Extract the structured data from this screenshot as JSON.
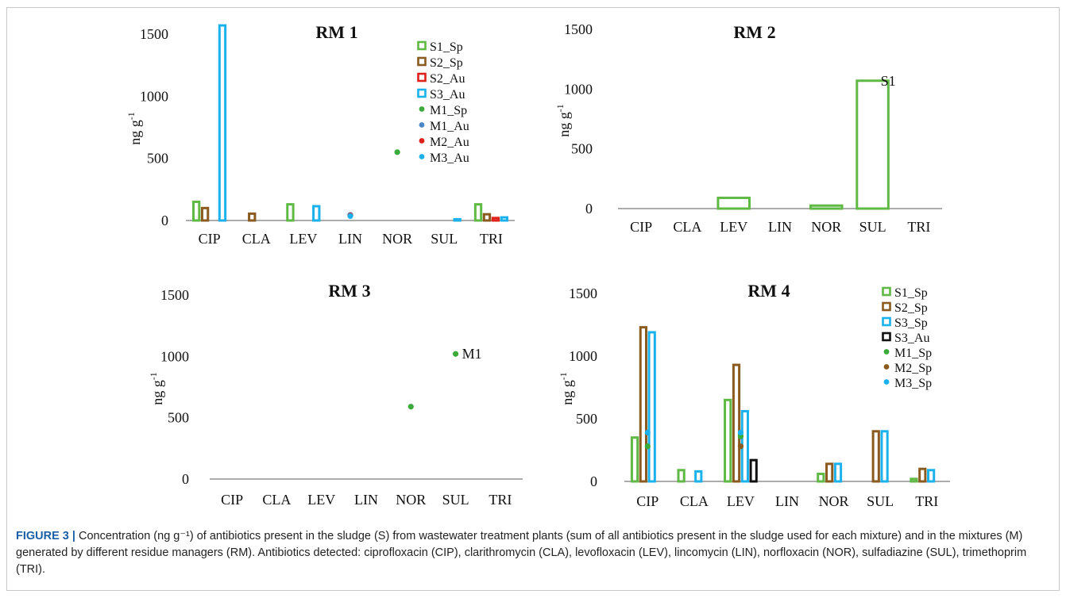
{
  "figure": {
    "caption_label": "FIGURE 3 |",
    "caption_text": " Concentration (ng g⁻¹) of antibiotics present in the sludge (S) from wastewater treatment plants (sum of all antibiotics present in the sludge used for each mixture) and in the mixtures (M) generated by different residue managers (RM). Antibiotics detected: ciprofloxacin (CIP), clarithromycin (CLA), levofloxacin (LEV), lincomycin (LIN), norfloxacin (NOR), sulfadiazine (SUL), trimethoprim (TRI)."
  },
  "colors": {
    "S1": "#5fb944",
    "S2": "#8a5a1f",
    "S2_Au": "#e0201b",
    "S3": "#1ab1ec",
    "S3_Au": "#111111",
    "M1_Sp": "#3aab3a",
    "M1_Au": "#4a86c8",
    "M2_Au": "#e0201b",
    "M2_Sp": "#8a5a1f",
    "M3": "#1ab1ec"
  },
  "chart_data": [
    {
      "type": "bar",
      "title": "RM 1",
      "ylabel": "ng g-1",
      "ylim": [
        0,
        1500
      ],
      "yticks": [
        "0",
        "500",
        "1000",
        "1500"
      ],
      "categories": [
        "CIP",
        "CLA",
        "LEV",
        "LIN",
        "NOR",
        "SUL",
        "TRI"
      ],
      "legend_placement": "top-right",
      "series": [
        {
          "name": "S1_Sp",
          "kind": "bar",
          "color": "#5fb944",
          "values": [
            150,
            0,
            130,
            0,
            0,
            0,
            130
          ]
        },
        {
          "name": "S2_Sp",
          "kind": "bar",
          "color": "#8a5a1f",
          "values": [
            100,
            55,
            0,
            0,
            0,
            0,
            50
          ]
        },
        {
          "name": "S2_Au",
          "kind": "bar",
          "color": "#e0201b",
          "values": [
            0,
            0,
            0,
            0,
            0,
            0,
            20
          ]
        },
        {
          "name": "S3_Au",
          "kind": "bar",
          "color": "#1ab1ec",
          "values": [
            1570,
            0,
            115,
            0,
            0,
            10,
            25
          ]
        },
        {
          "name": "M1_Sp",
          "kind": "point",
          "color": "#3aab3a",
          "values": [
            null,
            null,
            null,
            null,
            550,
            null,
            null
          ]
        },
        {
          "name": "M1_Au",
          "kind": "point",
          "color": "#4a86c8",
          "values": [
            null,
            null,
            null,
            45,
            null,
            null,
            null
          ]
        },
        {
          "name": "M2_Au",
          "kind": "point",
          "color": "#e0201b",
          "values": [
            null,
            null,
            null,
            40,
            null,
            null,
            null
          ]
        },
        {
          "name": "M3_Au",
          "kind": "point",
          "color": "#1ab1ec",
          "values": [
            null,
            null,
            null,
            35,
            null,
            null,
            null
          ]
        }
      ],
      "annotations": []
    },
    {
      "type": "bar",
      "title": "RM 2",
      "ylabel": "ng g-1",
      "ylim": [
        0,
        1500
      ],
      "yticks": [
        "0",
        "500",
        "1000",
        "1500"
      ],
      "categories": [
        "CIP",
        "CLA",
        "LEV",
        "LIN",
        "NOR",
        "SUL",
        "TRI"
      ],
      "legend_placement": "",
      "series": [
        {
          "name": "S1",
          "kind": "bar",
          "color": "#5fb944",
          "values": [
            0,
            0,
            90,
            0,
            25,
            1070,
            0
          ]
        }
      ],
      "annotations": [
        {
          "text": "S1",
          "series": 0,
          "category": 5
        }
      ]
    },
    {
      "type": "bar",
      "title": "RM 3",
      "ylabel": "ng g-1",
      "ylim": [
        0,
        1500
      ],
      "yticks": [
        "0",
        "500",
        "1000",
        "1500"
      ],
      "categories": [
        "CIP",
        "CLA",
        "LEV",
        "LIN",
        "NOR",
        "SUL",
        "TRI"
      ],
      "legend_placement": "",
      "series": [
        {
          "name": "M1",
          "kind": "point",
          "color": "#3aab3a",
          "values": [
            null,
            null,
            null,
            null,
            590,
            1020,
            null
          ]
        }
      ],
      "annotations": [
        {
          "text": "M1",
          "series": 0,
          "category": 5
        }
      ]
    },
    {
      "type": "bar",
      "title": "RM 4",
      "ylabel": "ng g-1",
      "ylim": [
        0,
        1500
      ],
      "yticks": [
        "0",
        "500",
        "1000",
        "1500"
      ],
      "categories": [
        "CIP",
        "CLA",
        "LEV",
        "LIN",
        "NOR",
        "SUL",
        "TRI"
      ],
      "legend_placement": "top-right",
      "series": [
        {
          "name": "S1_Sp",
          "kind": "bar",
          "color": "#5fb944",
          "values": [
            350,
            90,
            650,
            0,
            60,
            0,
            20
          ]
        },
        {
          "name": "S2_Sp",
          "kind": "bar",
          "color": "#8a5a1f",
          "values": [
            1230,
            0,
            930,
            0,
            140,
            400,
            100
          ]
        },
        {
          "name": "S3_Sp",
          "kind": "bar",
          "color": "#1ab1ec",
          "values": [
            1190,
            80,
            560,
            0,
            140,
            400,
            90
          ]
        },
        {
          "name": "S3_Au",
          "kind": "bar",
          "color": "#111111",
          "values": [
            0,
            0,
            170,
            0,
            0,
            0,
            0
          ]
        },
        {
          "name": "M1_Sp",
          "kind": "point",
          "color": "#3aab3a",
          "values": [
            280,
            null,
            360,
            null,
            null,
            null,
            null
          ]
        },
        {
          "name": "M2_Sp",
          "kind": "point",
          "color": "#8a5a1f",
          "values": [
            null,
            null,
            280,
            null,
            null,
            null,
            null
          ]
        },
        {
          "name": "M3_Sp",
          "kind": "point",
          "color": "#1ab1ec",
          "values": [
            390,
            null,
            390,
            null,
            null,
            null,
            null
          ]
        }
      ],
      "annotations": []
    }
  ]
}
